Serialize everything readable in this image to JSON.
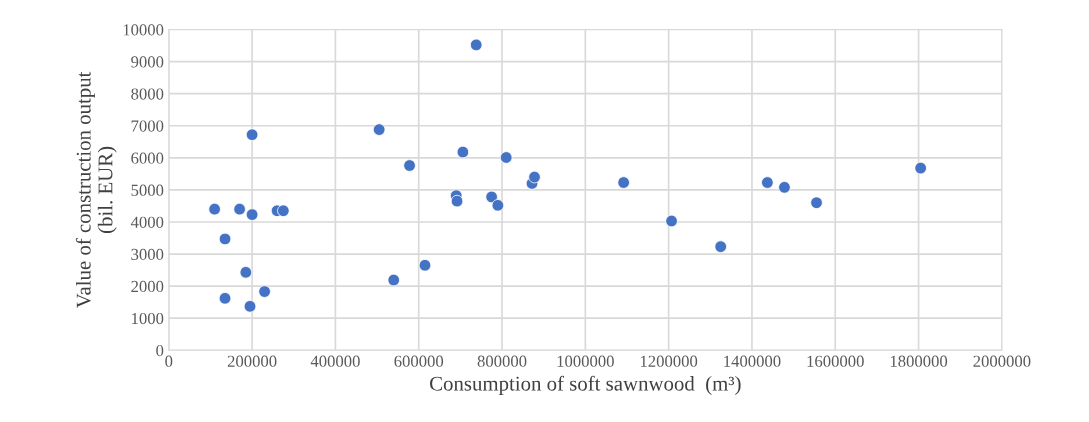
{
  "chart_data": {
    "type": "scatter",
    "xlabel": "Consumption of soft sawnwood  (m³)",
    "ylabel": "Value of construction output\n(bil. EUR)",
    "x": [
      110000,
      135000,
      135000,
      170000,
      185000,
      195000,
      200000,
      200000,
      230000,
      260000,
      275000,
      505000,
      540000,
      578000,
      615000,
      690000,
      692000,
      706000,
      738000,
      775000,
      790000,
      810000,
      872000,
      878000,
      1092000,
      1207000,
      1325000,
      1437000,
      1478000,
      1555000,
      1805000
    ],
    "series": [
      {
        "color": "#4472c4",
        "values": [
          4400,
          3470,
          1620,
          4400,
          2430,
          1370,
          6720,
          4230,
          1830,
          4350,
          4350,
          6880,
          2190,
          5760,
          2650,
          4820,
          4650,
          6180,
          9520,
          4780,
          4520,
          6010,
          5200,
          5400,
          5230,
          4030,
          3230,
          5230,
          5080,
          4600,
          5680
        ]
      }
    ],
    "xlim": [
      0,
      2000000
    ],
    "xticks": [
      0,
      200000,
      400000,
      600000,
      800000,
      1000000,
      1200000,
      1400000,
      1600000,
      1800000,
      2000000
    ],
    "ylim": [
      0,
      10000
    ],
    "yticks": [
      0,
      1000,
      2000,
      3000,
      4000,
      5000,
      6000,
      7000,
      8000,
      9000,
      10000
    ],
    "grid": true,
    "marker": "circle",
    "legend": false
  }
}
